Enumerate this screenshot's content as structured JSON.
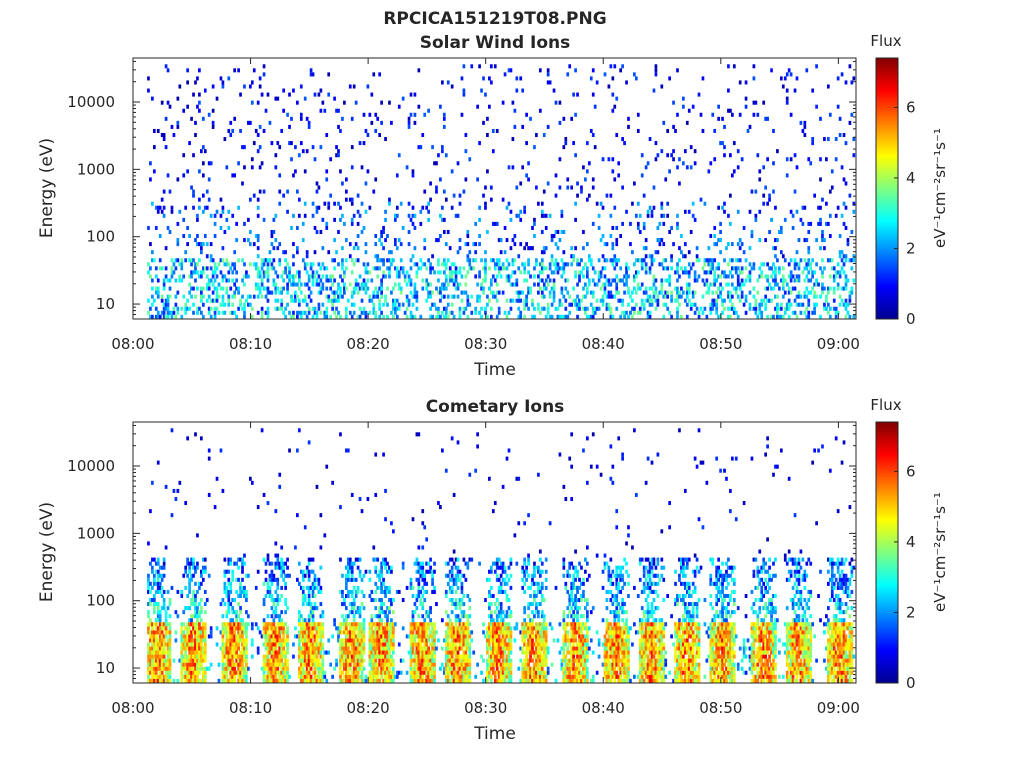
{
  "figure_title": "RPCICA151219T08.PNG",
  "colormap": [
    "#00008f",
    "#0000ff",
    "#0080ff",
    "#00ffff",
    "#80ff80",
    "#ffff00",
    "#ff8000",
    "#ff0000",
    "#800000"
  ],
  "chart_data": [
    {
      "type": "heatmap",
      "title": "Solar Wind Ions",
      "xlabel": "Time",
      "ylabel": "Energy (eV)",
      "x_ticks": [
        "08:00",
        "08:10",
        "08:20",
        "08:30",
        "08:40",
        "08:50",
        "09:00"
      ],
      "x_range_minutes": [
        0,
        61.5
      ],
      "y_scale": "log",
      "y_ticks": [
        "10",
        "100",
        "1000",
        "10000"
      ],
      "y_range": [
        6,
        45000
      ],
      "colorbar": {
        "title": "Flux",
        "label": "eV⁻¹cm⁻²sr⁻¹s⁻¹",
        "ticks": [
          "0",
          "2",
          "4",
          "6"
        ],
        "range": [
          0,
          7.4
        ]
      },
      "intensity_pattern": "sparse scattered dark-blue counts across all energies; moderate blue-cyan patches at 10-50 eV; occasional green-yellow pixels near 20-40 eV",
      "seed": 1
    },
    {
      "type": "heatmap",
      "title": "Cometary Ions",
      "xlabel": "Time",
      "ylabel": "Energy (eV)",
      "x_ticks": [
        "08:00",
        "08:10",
        "08:20",
        "08:30",
        "08:40",
        "08:50",
        "09:00"
      ],
      "x_range_minutes": [
        0,
        61.5
      ],
      "y_scale": "log",
      "y_ticks": [
        "10",
        "100",
        "1000",
        "10000"
      ],
      "y_range": [
        6,
        45000
      ],
      "colorbar": {
        "title": "Flux",
        "label": "eV⁻¹cm⁻²sr⁻¹s⁻¹",
        "ticks": [
          "0",
          "2",
          "4",
          "6"
        ],
        "range": [
          0,
          7.4
        ]
      },
      "burst_centers_minutes": [
        2,
        5,
        8.5,
        12,
        15,
        18.5,
        21,
        24.5,
        27.5,
        31,
        34,
        37.5,
        41,
        44,
        47,
        50,
        53.5,
        56.5,
        60
      ],
      "intensity_pattern": "recurring bursts of orange-red flux at 15-40 eV roughly every 3 minutes, with cyan-green tails extending to a few hundred eV and sparse dark-blue counts above",
      "seed": 2
    }
  ]
}
